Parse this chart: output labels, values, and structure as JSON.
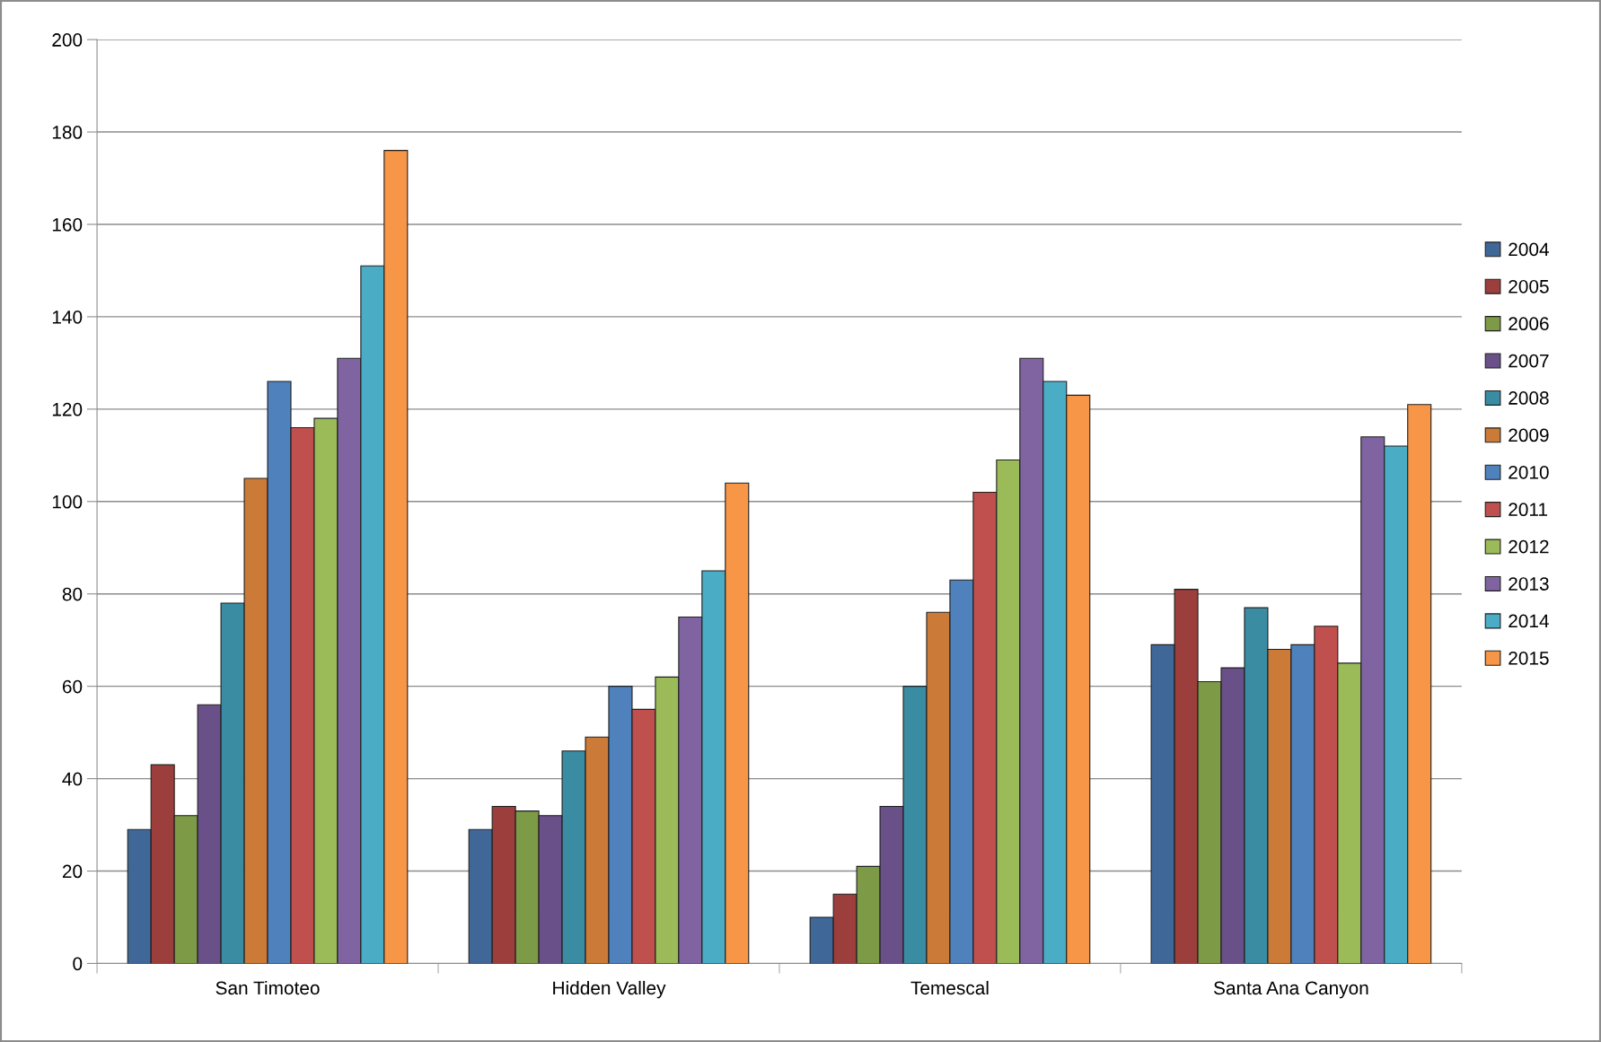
{
  "chart_data": {
    "type": "bar",
    "categories": [
      "San Timoteo",
      "Hidden Valley",
      "Temescal",
      "Santa Ana Canyon"
    ],
    "series": [
      {
        "name": "2004",
        "color": "#3f6798",
        "values": [
          29,
          29,
          10,
          69
        ]
      },
      {
        "name": "2005",
        "color": "#9c3e3b",
        "values": [
          43,
          34,
          15,
          81
        ]
      },
      {
        "name": "2006",
        "color": "#7d9a47",
        "values": [
          32,
          33,
          21,
          61
        ]
      },
      {
        "name": "2007",
        "color": "#6a5089",
        "values": [
          56,
          32,
          34,
          64
        ]
      },
      {
        "name": "2008",
        "color": "#3a8ca3",
        "values": [
          78,
          46,
          60,
          77
        ]
      },
      {
        "name": "2009",
        "color": "#cb7a37",
        "values": [
          105,
          49,
          76,
          68
        ]
      },
      {
        "name": "2010",
        "color": "#4f81bd",
        "values": [
          126,
          60,
          83,
          69
        ]
      },
      {
        "name": "2011",
        "color": "#c0504d",
        "values": [
          116,
          55,
          102,
          73
        ]
      },
      {
        "name": "2012",
        "color": "#9bbb59",
        "values": [
          118,
          62,
          109,
          65
        ]
      },
      {
        "name": "2013",
        "color": "#8064a2",
        "values": [
          131,
          75,
          131,
          114
        ]
      },
      {
        "name": "2014",
        "color": "#4bacc6",
        "values": [
          151,
          85,
          126,
          112
        ]
      },
      {
        "name": "2015",
        "color": "#f79646",
        "values": [
          176,
          104,
          123,
          121
        ]
      }
    ],
    "ylim": [
      0,
      200
    ],
    "yticks": [
      0,
      20,
      40,
      60,
      80,
      100,
      120,
      140,
      160,
      180,
      200
    ],
    "grid": "y",
    "legend": "right"
  }
}
